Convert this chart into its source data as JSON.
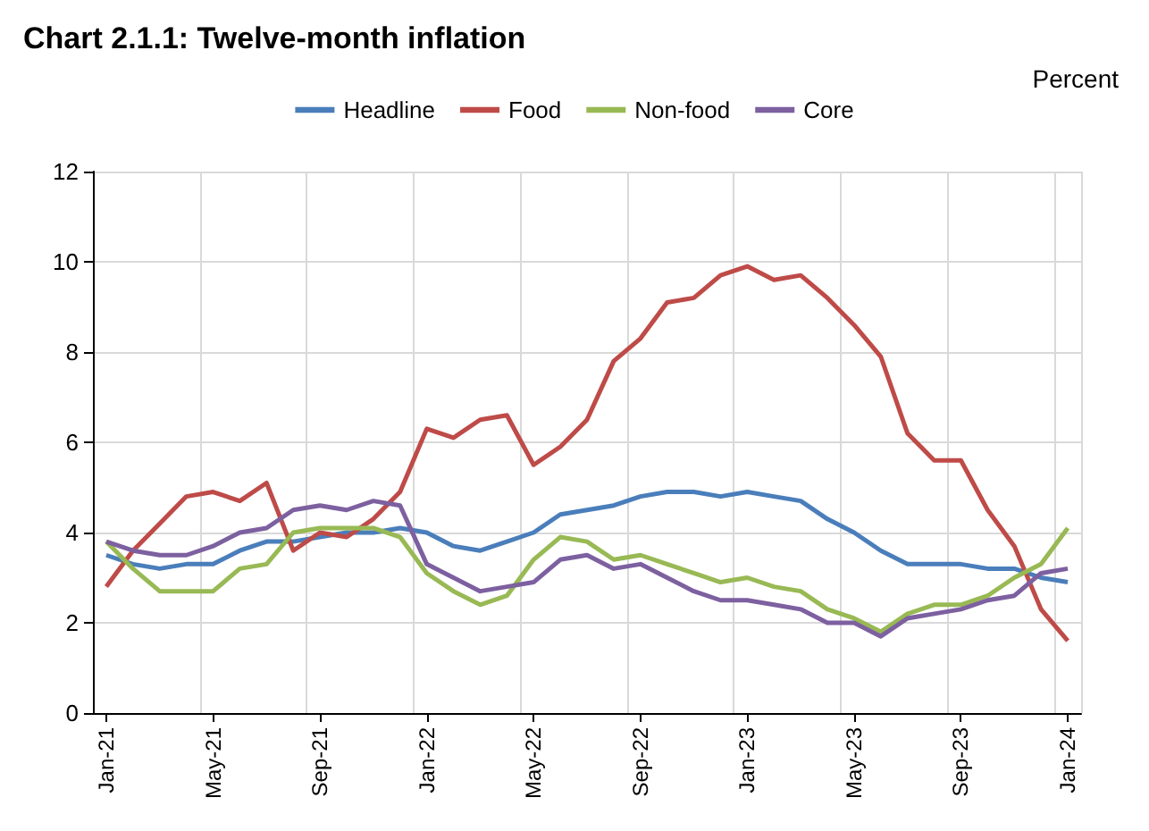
{
  "chart_data": {
    "type": "line",
    "title": "Chart 2.1.1: Twelve-month inflation",
    "ylabel": "Percent",
    "categories": [
      "Jan-21",
      null,
      null,
      null,
      "May-21",
      null,
      null,
      null,
      "Sep-21",
      null,
      null,
      null,
      "Jan-22",
      null,
      null,
      null,
      "May-22",
      null,
      null,
      null,
      "Sep-22",
      null,
      null,
      null,
      "Jan-23",
      null,
      null,
      null,
      "May-23",
      null,
      null,
      null,
      "Sep-23",
      null,
      null,
      null,
      "Jan-24"
    ],
    "series": [
      {
        "name": "Headline",
        "color": "#4a7ebb",
        "values": [
          3.5,
          3.3,
          3.2,
          3.3,
          3.3,
          3.6,
          3.8,
          3.8,
          3.9,
          4.0,
          4.0,
          4.1,
          4.0,
          3.7,
          3.6,
          3.8,
          4.0,
          4.4,
          4.5,
          4.6,
          4.8,
          4.9,
          4.9,
          4.8,
          4.9,
          4.8,
          4.7,
          4.3,
          4.0,
          3.6,
          3.3,
          3.3,
          3.3,
          3.2,
          3.2,
          3.0,
          2.9
        ]
      },
      {
        "name": "Food",
        "color": "#be4b48",
        "values": [
          2.8,
          3.6,
          4.2,
          4.8,
          4.9,
          4.7,
          5.1,
          3.6,
          4.0,
          3.9,
          4.3,
          4.9,
          6.3,
          6.1,
          6.5,
          6.6,
          5.5,
          5.9,
          6.5,
          7.8,
          8.3,
          9.1,
          9.2,
          9.7,
          9.9,
          9.6,
          9.7,
          9.2,
          8.6,
          7.9,
          6.2,
          5.6,
          5.6,
          4.5,
          3.7,
          2.3,
          1.6
        ]
      },
      {
        "name": "Non-food",
        "color": "#98b954",
        "values": [
          3.8,
          3.2,
          2.7,
          2.7,
          2.7,
          3.2,
          3.3,
          4.0,
          4.1,
          4.1,
          4.1,
          3.9,
          3.1,
          2.7,
          2.4,
          2.6,
          3.4,
          3.9,
          3.8,
          3.4,
          3.5,
          3.3,
          3.1,
          2.9,
          3.0,
          2.8,
          2.7,
          2.3,
          2.1,
          1.8,
          2.2,
          2.4,
          2.4,
          2.6,
          3.0,
          3.3,
          4.1
        ]
      },
      {
        "name": "Core",
        "color": "#7d60a0",
        "values": [
          3.8,
          3.6,
          3.5,
          3.5,
          3.7,
          4.0,
          4.1,
          4.5,
          4.6,
          4.5,
          4.7,
          4.6,
          3.3,
          3.0,
          2.7,
          2.8,
          2.9,
          3.4,
          3.5,
          3.2,
          3.3,
          3.0,
          2.7,
          2.5,
          2.5,
          2.4,
          2.3,
          2.0,
          2.0,
          1.7,
          2.1,
          2.2,
          2.3,
          2.5,
          2.6,
          3.1,
          3.2
        ]
      }
    ],
    "ylim": [
      0,
      12
    ],
    "yticks": [
      0,
      2,
      4,
      6,
      8,
      10,
      12
    ],
    "grid": true,
    "legend": "top",
    "marker": "none",
    "line_style": "solid"
  }
}
